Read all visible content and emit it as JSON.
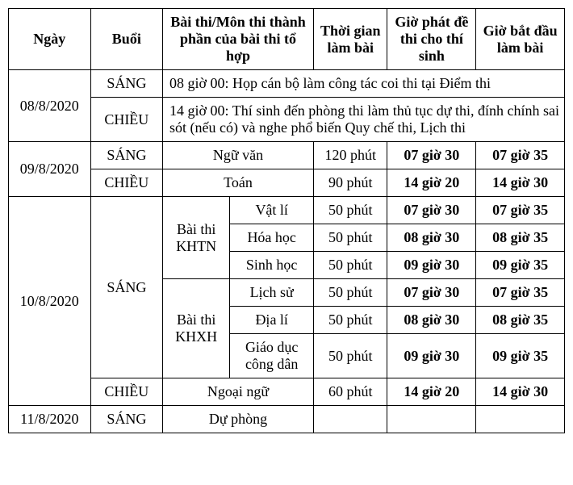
{
  "headers": {
    "ngay": "Ngày",
    "buoi": "Buổi",
    "mon": "Bài thi/Môn thi thành phần của bài thi tổ hợp",
    "tg": "Thời gian làm bài",
    "phat": "Giờ phát đề thi cho thí sinh",
    "bat": "Giờ bắt đầu làm bài"
  },
  "d1": {
    "date": "08/8/2020",
    "sang": "SÁNG",
    "chieu": "CHIỀU",
    "sang_text": "08 giờ 00: Họp cán bộ làm công tác coi thi tại Điểm thi",
    "chieu_text": "14 giờ 00: Thí sinh đến phòng thi làm thủ tục dự thi, đính chính sai sót (nếu có) và nghe phổ biến Quy chế thi, Lịch thi"
  },
  "d2": {
    "date": "09/8/2020",
    "sang": "SÁNG",
    "chieu": "CHIỀU",
    "r1": {
      "mon": "Ngữ văn",
      "tg": "120 phút",
      "phat": "07 giờ 30",
      "bat": "07 giờ 35"
    },
    "r2": {
      "mon": "Toán",
      "tg": "90 phút",
      "phat": "14 giờ 20",
      "bat": "14 giờ 30"
    }
  },
  "d3": {
    "date": "10/8/2020",
    "sang": "SÁNG",
    "chieu": "CHIỀU",
    "khtn": "Bài thi KHTN",
    "khxh": "Bài thi KHXH",
    "s1": {
      "mon": "Vật lí",
      "tg": "50 phút",
      "phat": "07 giờ 30",
      "bat": "07 giờ 35"
    },
    "s2": {
      "mon": "Hóa học",
      "tg": "50 phút",
      "phat": "08 giờ 30",
      "bat": "08 giờ 35"
    },
    "s3": {
      "mon": "Sinh học",
      "tg": "50 phút",
      "phat": "09 giờ 30",
      "bat": "09 giờ 35"
    },
    "s4": {
      "mon": "Lịch sử",
      "tg": "50 phút",
      "phat": "07 giờ 30",
      "bat": "07 giờ 35"
    },
    "s5": {
      "mon": "Địa lí",
      "tg": "50 phút",
      "phat": "08 giờ 30",
      "bat": "08 giờ 35"
    },
    "s6": {
      "mon": "Giáo dục công dân",
      "tg": "50 phút",
      "phat": "09 giờ 30",
      "bat": "09 giờ 35"
    },
    "c1": {
      "mon": "Ngoại ngữ",
      "tg": "60 phút",
      "phat": "14 giờ 20",
      "bat": "14 giờ 30"
    }
  },
  "d4": {
    "date": "11/8/2020",
    "sang": "SÁNG",
    "mon": "Dự phòng"
  }
}
